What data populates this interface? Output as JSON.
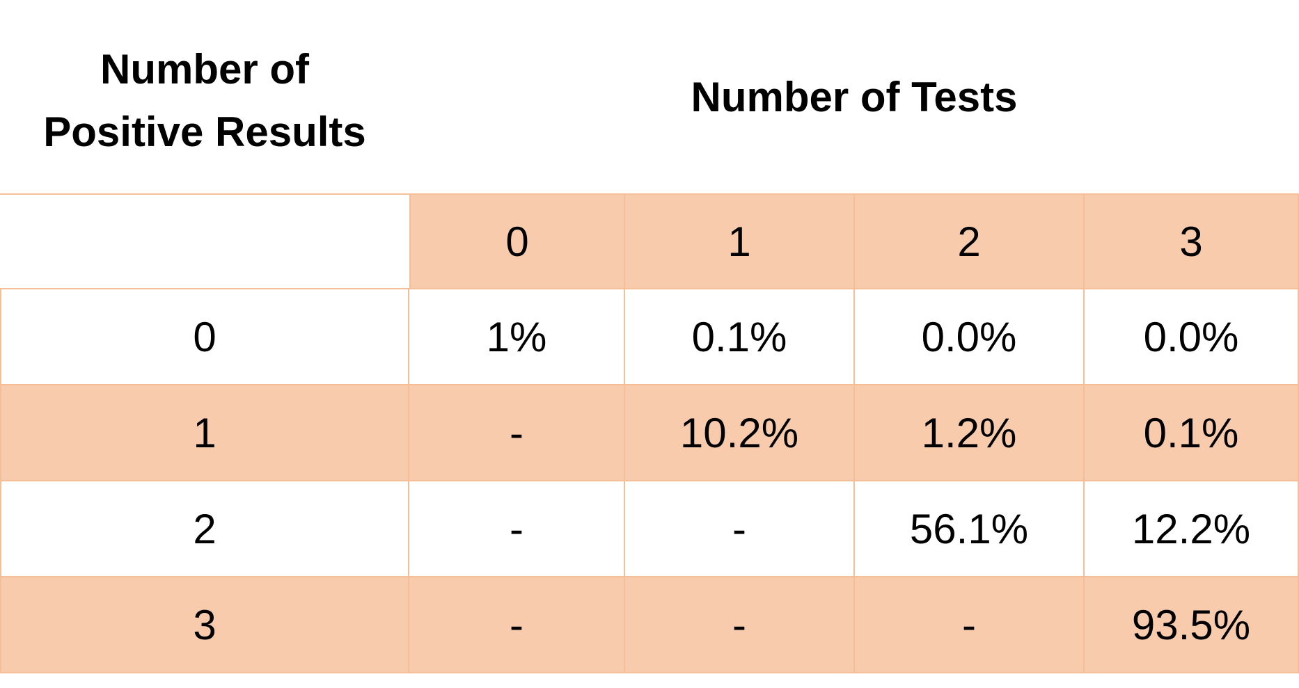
{
  "titles": {
    "row_header_line1": "Number of",
    "row_header_line2": "Positive Results",
    "col_header": "Number of Tests"
  },
  "columns": [
    "0",
    "1",
    "2",
    "3"
  ],
  "rows": [
    {
      "label": "0",
      "values": [
        "1%",
        "0.1%",
        "0.0%",
        "0.0%"
      ]
    },
    {
      "label": "1",
      "values": [
        "-",
        "10.2%",
        "1.2%",
        "0.1%"
      ]
    },
    {
      "label": "2",
      "values": [
        "-",
        "-",
        "56.1%",
        "12.2%"
      ]
    },
    {
      "label": "3",
      "values": [
        "-",
        "-",
        "-",
        "93.5%"
      ]
    }
  ],
  "colors": {
    "accent": "#f8cbad",
    "border": "#f5be96",
    "background": "#ffffff"
  }
}
